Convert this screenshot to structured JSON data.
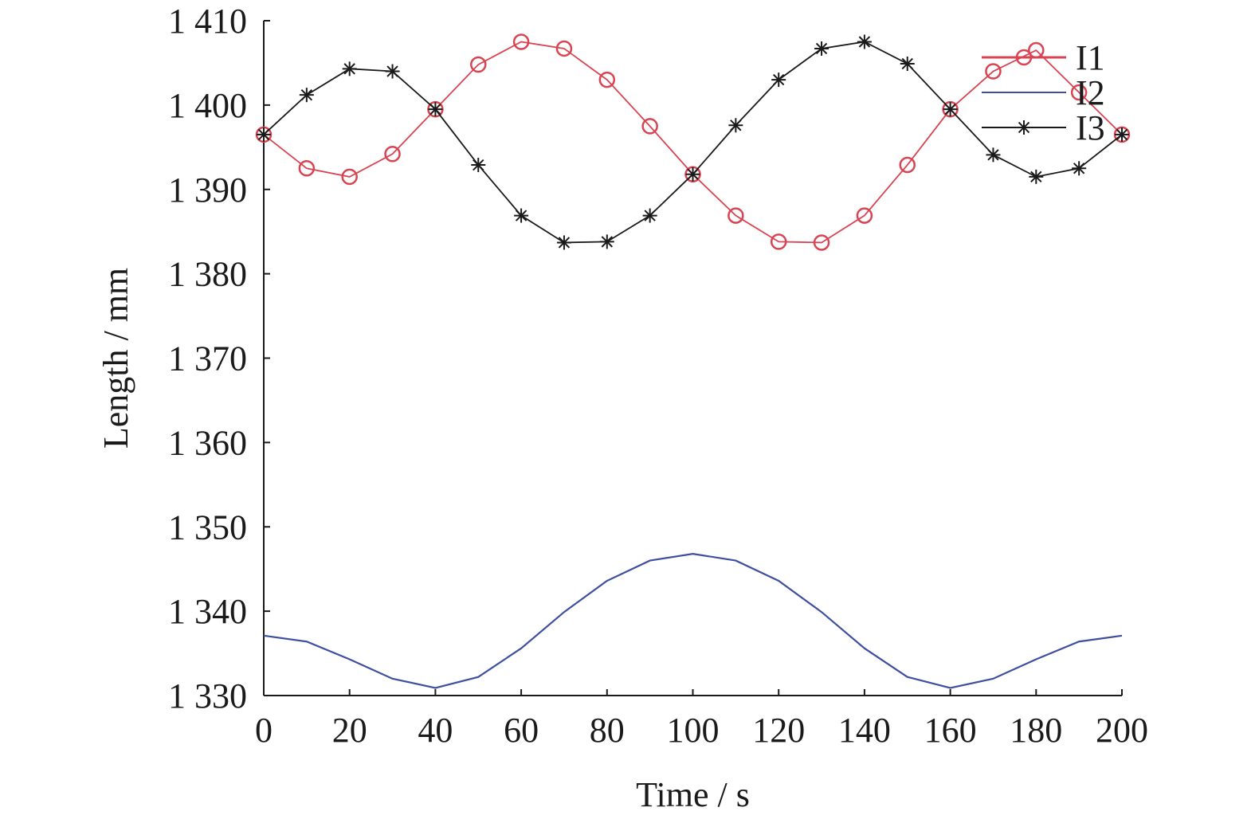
{
  "chart_data": {
    "type": "line",
    "title": "",
    "xlabel": "Time / s",
    "ylabel": "Length / mm",
    "xlim": [
      0,
      200
    ],
    "ylim": [
      1330,
      1410
    ],
    "grid": false,
    "legend_position": "top-right",
    "x_ticks": [
      0,
      20,
      40,
      60,
      80,
      100,
      120,
      140,
      160,
      180,
      200
    ],
    "x_tick_labels": [
      "0",
      "20",
      "40",
      "60",
      "80",
      "100",
      "120",
      "140",
      "160",
      "180",
      "200"
    ],
    "y_ticks": [
      1330,
      1340,
      1350,
      1360,
      1370,
      1380,
      1390,
      1400,
      1410
    ],
    "y_tick_labels": [
      "1 330",
      "1 340",
      "1 350",
      "1 360",
      "1 370",
      "1 380",
      "1 390",
      "1 400",
      "1 410"
    ],
    "x": [
      0,
      10,
      20,
      30,
      40,
      50,
      60,
      70,
      80,
      90,
      100,
      110,
      120,
      130,
      140,
      150,
      160,
      170,
      180,
      190,
      200
    ],
    "series": [
      {
        "name": "I1",
        "color": "#d94452",
        "marker": "circle",
        "values": [
          1396.5,
          1392.5,
          1391.5,
          1394.2,
          1399.5,
          1404.8,
          1407.5,
          1406.7,
          1403.0,
          1397.5,
          1391.8,
          1386.9,
          1383.8,
          1383.7,
          1386.9,
          1392.9,
          1399.5,
          1404.0,
          1406.5,
          1401.5,
          1396.5
        ]
      },
      {
        "name": "I2",
        "color": "#3f4f9f",
        "marker": "none",
        "values": [
          1337.1,
          1336.4,
          1334.3,
          1332.0,
          1330.9,
          1332.2,
          1335.6,
          1339.9,
          1343.6,
          1346.0,
          1346.8,
          1346.0,
          1343.6,
          1339.9,
          1335.6,
          1332.2,
          1330.9,
          1332.0,
          1334.3,
          1336.4,
          1337.1
        ]
      },
      {
        "name": "I3",
        "color": "#1a1a1a",
        "marker": "asterisk",
        "values": [
          1396.5,
          1401.2,
          1404.3,
          1404.0,
          1399.5,
          1392.9,
          1386.9,
          1383.7,
          1383.8,
          1386.9,
          1391.8,
          1397.6,
          1403.0,
          1406.7,
          1407.5,
          1404.9,
          1399.5,
          1394.1,
          1391.5,
          1392.5,
          1396.5
        ]
      }
    ]
  }
}
